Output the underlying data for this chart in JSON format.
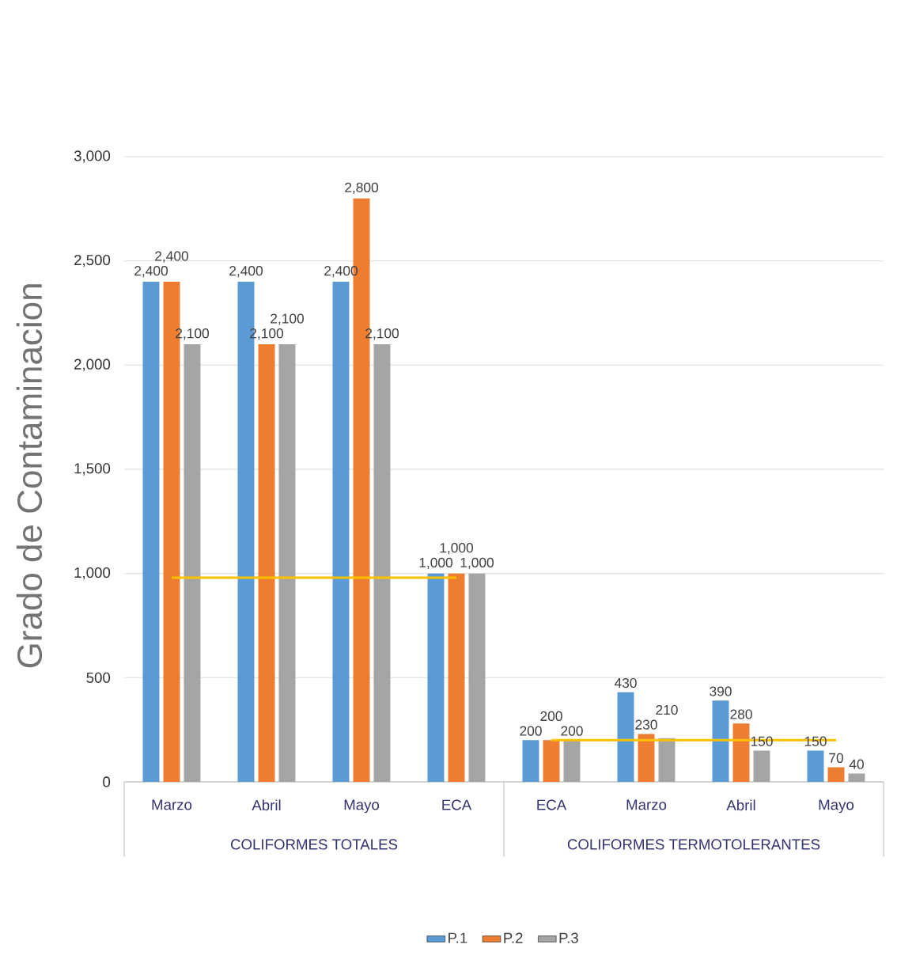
{
  "chart_data": {
    "type": "bar",
    "ylabel": "Grado de Contaminacion",
    "categories": [
      "Marzo",
      "Abril",
      "Mayo",
      "ECA",
      "ECA",
      "Marzo",
      "Abril",
      "Mayo"
    ],
    "series": [
      {
        "name": "P.1",
        "color": "#5b9bd5",
        "values": [
          2400,
          2400,
          2400,
          1000,
          200,
          430,
          390,
          150
        ],
        "value_labels": [
          "2,400",
          "2,400",
          "2,400",
          "1,000",
          "200",
          "430",
          "390",
          "150"
        ]
      },
      {
        "name": "P.2",
        "color": "#ed7d31",
        "values": [
          2400,
          2100,
          2800,
          1000,
          200,
          230,
          280,
          70
        ],
        "value_labels": [
          "2,400",
          "2,100",
          "2,800",
          "1,000",
          "200",
          "230",
          "280",
          "70"
        ]
      },
      {
        "name": "P.3",
        "color": "#a5a5a5",
        "values": [
          2100,
          2100,
          2100,
          1000,
          200,
          210,
          150,
          40
        ],
        "value_labels": [
          "2,100",
          "2,100",
          "2,100",
          "1,000",
          "200",
          "210",
          "150",
          "40"
        ]
      },
      {
        "type": "line",
        "color": "#ffc000",
        "values": [
          980,
          980,
          980,
          980,
          null,
          null,
          null,
          null
        ]
      },
      {
        "type": "line",
        "color": "#ffc000",
        "values": [
          null,
          null,
          null,
          null,
          200,
          200,
          200,
          200
        ]
      }
    ],
    "annotations": [
      "COLIFORMES TOTALES",
      "COLIFORMES TERMOTOLERANTES"
    ],
    "ylim": [
      0,
      3000
    ],
    "yticks": [
      0,
      500,
      {
        "value": 1000,
        "label": "1,000"
      },
      {
        "value": 1500,
        "label": "1,500"
      },
      {
        "value": 2000,
        "label": "2,000"
      },
      {
        "value": 2500,
        "label": "2,500"
      },
      {
        "value": 3000,
        "label": "3,000"
      }
    ],
    "grid": "y",
    "legend": "bottom"
  }
}
